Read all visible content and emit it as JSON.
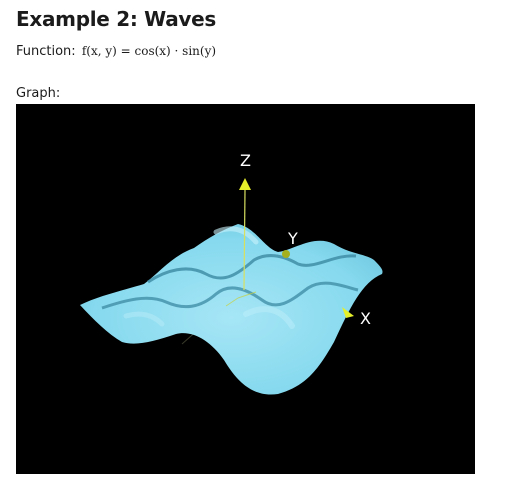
{
  "page": {
    "title": "Example 2: Waves",
    "function_label": "Function:",
    "function_formula": "f(x, y) = cos(x) · sin(y)",
    "graph_label": "Graph:"
  },
  "graph": {
    "axes": {
      "x_label": "X",
      "y_label": "Y",
      "z_label": "Z"
    },
    "colors": {
      "background": "#000000",
      "surface": "#87dcef",
      "axis": "#e6f02a"
    }
  }
}
